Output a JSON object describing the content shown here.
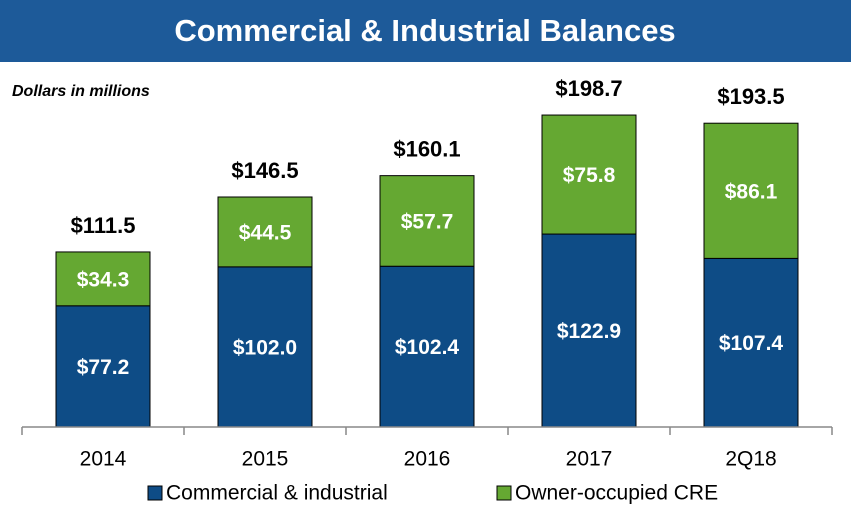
{
  "chart_data": {
    "type": "stacked_bar",
    "title": "Commercial & Industrial Balances",
    "subtitle": "Dollars in millions",
    "categories": [
      "2014",
      "2015",
      "2016",
      "2017",
      "2Q18"
    ],
    "series": [
      {
        "name": "Commercial & industrial",
        "color": "#0e4c86",
        "values": [
          77.2,
          102.0,
          102.4,
          122.9,
          107.4
        ],
        "value_labels": [
          "$77.2",
          "$102.0",
          "$102.4",
          "$122.9",
          "$107.4"
        ]
      },
      {
        "name": "Owner-occupied CRE",
        "color": "#65a832",
        "values": [
          34.3,
          44.5,
          57.7,
          75.8,
          86.1
        ],
        "value_labels": [
          "$34.3",
          "$44.5",
          "$57.7",
          "$75.8",
          "$86.1"
        ]
      }
    ],
    "total_labels": [
      "$111.5",
      "$146.5",
      "$160.1",
      "$198.7",
      "$193.5"
    ],
    "ylim": [
      0,
      200
    ]
  }
}
